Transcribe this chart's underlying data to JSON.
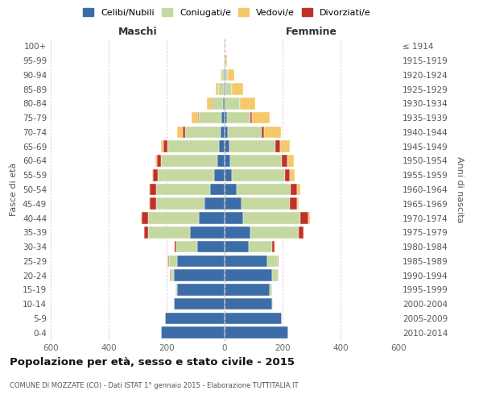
{
  "age_groups": [
    "0-4",
    "5-9",
    "10-14",
    "15-19",
    "20-24",
    "25-29",
    "30-34",
    "35-39",
    "40-44",
    "45-49",
    "50-54",
    "55-59",
    "60-64",
    "65-69",
    "70-74",
    "75-79",
    "80-84",
    "85-89",
    "90-94",
    "95-99",
    "100+"
  ],
  "birth_years": [
    "2010-2014",
    "2005-2009",
    "2000-2004",
    "1995-1999",
    "1990-1994",
    "1985-1989",
    "1980-1984",
    "1975-1979",
    "1970-1974",
    "1965-1969",
    "1960-1964",
    "1955-1959",
    "1950-1954",
    "1945-1949",
    "1940-1944",
    "1935-1939",
    "1930-1934",
    "1925-1929",
    "1920-1924",
    "1915-1919",
    "≤ 1914"
  ],
  "male": {
    "celibi": [
      220,
      205,
      175,
      165,
      175,
      165,
      95,
      120,
      90,
      70,
      50,
      35,
      25,
      20,
      15,
      10,
      5,
      3,
      2,
      0,
      0
    ],
    "coniugati": [
      0,
      0,
      0,
      4,
      12,
      28,
      72,
      145,
      175,
      165,
      185,
      195,
      195,
      178,
      120,
      78,
      38,
      18,
      8,
      2,
      1
    ],
    "vedovi": [
      0,
      0,
      0,
      0,
      0,
      1,
      1,
      2,
      3,
      3,
      3,
      4,
      5,
      10,
      20,
      20,
      15,
      10,
      5,
      1,
      0
    ],
    "divorziati": [
      0,
      0,
      0,
      0,
      1,
      2,
      6,
      12,
      22,
      22,
      22,
      16,
      14,
      12,
      10,
      5,
      2,
      0,
      0,
      0,
      0
    ]
  },
  "female": {
    "nubili": [
      220,
      198,
      165,
      155,
      165,
      148,
      82,
      88,
      65,
      58,
      42,
      25,
      20,
      18,
      12,
      8,
      4,
      3,
      2,
      0,
      0
    ],
    "coniugate": [
      0,
      0,
      2,
      8,
      20,
      35,
      82,
      168,
      195,
      168,
      185,
      182,
      178,
      158,
      115,
      82,
      48,
      22,
      10,
      2,
      0
    ],
    "vedove": [
      0,
      0,
      0,
      0,
      0,
      1,
      2,
      3,
      5,
      5,
      10,
      16,
      22,
      32,
      58,
      62,
      52,
      38,
      22,
      5,
      2
    ],
    "divorziate": [
      0,
      0,
      0,
      0,
      1,
      3,
      8,
      16,
      30,
      24,
      24,
      18,
      18,
      16,
      9,
      4,
      1,
      0,
      0,
      0,
      0
    ]
  },
  "colors": {
    "celibi_nubili": "#3c6da8",
    "coniugati": "#c5d8a0",
    "vedovi": "#f5c86a",
    "divorziati": "#c0312b"
  },
  "xlim": [
    -600,
    600
  ],
  "xticks": [
    -600,
    -400,
    -200,
    0,
    200,
    400,
    600
  ],
  "xtick_labels": [
    "600",
    "400",
    "200",
    "0",
    "200",
    "400",
    "600"
  ],
  "title": "Popolazione per età, sesso e stato civile - 2015",
  "subtitle": "COMUNE DI MOZZATE (CO) - Dati ISTAT 1° gennaio 2015 - Elaborazione TUTTITALIA.IT",
  "ylabel_left": "Fasce di età",
  "ylabel_right": "Anni di nascita",
  "label_maschi": "Maschi",
  "label_femmine": "Femmine",
  "legend_labels": [
    "Celibi/Nubili",
    "Coniugati/e",
    "Vedovi/e",
    "Divorziati/e"
  ],
  "background_color": "#ffffff",
  "grid_color": "#cccccc"
}
